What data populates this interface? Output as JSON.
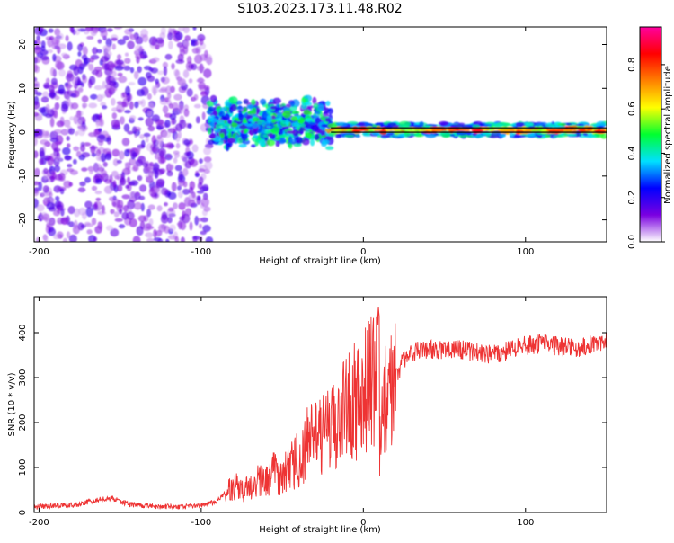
{
  "title": "S103.2023.173.11.48.R02",
  "chart_data": [
    {
      "type": "heatmap",
      "xlabel": "Height of straight line (km)",
      "ylabel": "Frequency (Hz)",
      "xlim": [
        -203,
        150
      ],
      "ylim": [
        -25,
        24
      ],
      "x_ticks": [
        -200,
        -100,
        0,
        100
      ],
      "y_ticks": [
        20,
        10,
        0,
        -10,
        -20
      ],
      "colorbar": {
        "label": "Normalized spectral amplitude",
        "range": [
          0,
          0.97
        ],
        "ticks": [
          0.0,
          0.2,
          0.4,
          0.6,
          0.8
        ],
        "tick_labels": [
          "0.0",
          "0.2",
          "0.4",
          "0.6",
          "0.8"
        ],
        "colormap": [
          "#ffffff",
          "#7a00e0",
          "#0000ff",
          "#00e0ff",
          "#00ff30",
          "#ffff00",
          "#ff8000",
          "#ff0000",
          "#ff00a0"
        ]
      },
      "regions": [
        {
          "x_range": [
            -203,
            -95
          ],
          "f_range": [
            -25,
            24
          ],
          "amplitude": 0.12,
          "description": "noise"
        },
        {
          "x_range": [
            -95,
            -20
          ],
          "f_range": [
            -4,
            8
          ],
          "amplitude": 0.3
        },
        {
          "x_range": [
            -20,
            150
          ],
          "f_range": [
            -1,
            2
          ],
          "amplitude": 0.85
        }
      ],
      "overlay_line": {
        "x_range": [
          -20,
          150
        ],
        "f": [
          0,
          1
        ]
      }
    },
    {
      "type": "line",
      "xlabel": "Height of straight line (km)",
      "ylabel": "SNR (10 * v/v)",
      "xlim": [
        -203,
        150
      ],
      "ylim": [
        0,
        480
      ],
      "x_ticks": [
        -200,
        -100,
        0,
        100
      ],
      "y_ticks": [
        0,
        100,
        200,
        300,
        400
      ],
      "line_color": "#ee3333",
      "series": [
        {
          "x": [
            -203,
            -190,
            -175,
            -165,
            -155,
            -145,
            -130,
            -115,
            -100,
            -90,
            -85,
            -80,
            -75,
            -70,
            -65,
            -60,
            -55,
            -50,
            -45,
            -40,
            -35,
            -30,
            -25,
            -20,
            -15,
            -10,
            -5,
            0,
            5,
            8,
            10,
            12,
            15,
            20,
            25,
            30,
            40,
            50,
            60,
            70,
            80,
            90,
            100,
            110,
            120,
            130,
            140,
            150
          ],
          "y": [
            12,
            15,
            18,
            28,
            32,
            18,
            14,
            12,
            15,
            25,
            45,
            60,
            50,
            55,
            70,
            65,
            90,
            80,
            100,
            120,
            150,
            160,
            175,
            180,
            200,
            240,
            250,
            270,
            290,
            300,
            180,
            210,
            260,
            300,
            340,
            355,
            365,
            360,
            362,
            355,
            350,
            360,
            372,
            375,
            370,
            365,
            375,
            380
          ]
        }
      ]
    }
  ]
}
